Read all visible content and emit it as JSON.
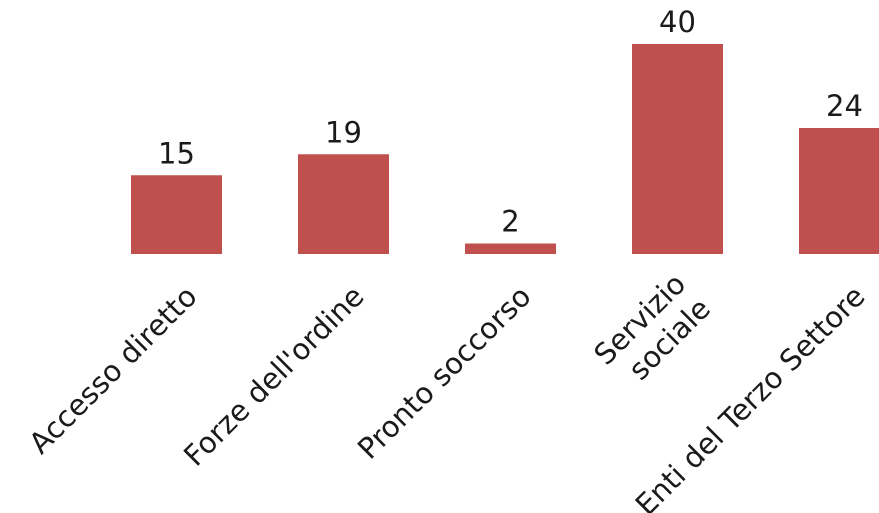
{
  "chart_data": {
    "type": "bar",
    "categories": [
      [
        "Accesso diretto"
      ],
      [
        "Forze dell'ordine"
      ],
      [
        "Pronto soccorso"
      ],
      [
        "Servizio",
        "sociale"
      ],
      [
        "Enti del Terzo Settore"
      ]
    ],
    "values": [
      15,
      19,
      2,
      40,
      24
    ],
    "data_labels": [
      "15",
      "19",
      "2",
      "40",
      "24"
    ],
    "title": "",
    "xlabel": "",
    "ylabel": "",
    "ylim": [
      0,
      40
    ],
    "grid": false,
    "legend": "none",
    "bar_color": "#c0504d"
  }
}
